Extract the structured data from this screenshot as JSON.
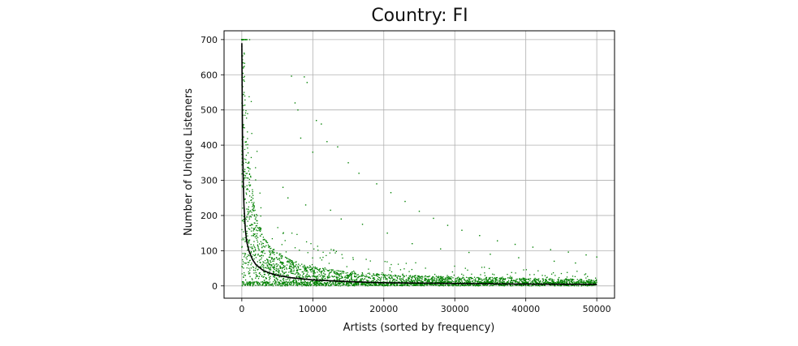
{
  "chart_data": {
    "type": "scatter",
    "title": "Country: FI",
    "xlabel": "Artists (sorted by frequency)",
    "ylabel": "Number of Unique Listeners",
    "xlim": [
      -2500,
      52500
    ],
    "ylim": [
      -35,
      725
    ],
    "xticks": [
      0,
      10000,
      20000,
      30000,
      40000,
      50000
    ],
    "yticks": [
      0,
      100,
      200,
      300,
      400,
      500,
      600,
      700
    ],
    "grid": true,
    "n_artists": 50000,
    "series": [
      {
        "kind": "points",
        "color": "#008000",
        "core_band": [
          [
            0,
            695
          ],
          [
            100,
            560
          ],
          [
            300,
            380
          ],
          [
            600,
            280
          ],
          [
            1000,
            200
          ],
          [
            1500,
            150
          ],
          [
            2000,
            115
          ],
          [
            3000,
            80
          ],
          [
            4000,
            62
          ],
          [
            5000,
            52
          ],
          [
            7000,
            40
          ],
          [
            10000,
            30
          ],
          [
            15000,
            22
          ],
          [
            20000,
            18
          ],
          [
            30000,
            14
          ],
          [
            40000,
            12
          ],
          [
            50000,
            10
          ]
        ],
        "outliers": [
          [
            7000,
            596
          ],
          [
            8800,
            594
          ],
          [
            9200,
            578
          ],
          [
            7500,
            520
          ],
          [
            7900,
            500
          ],
          [
            10500,
            470
          ],
          [
            11200,
            460
          ],
          [
            8300,
            420
          ],
          [
            12000,
            410
          ],
          [
            13500,
            395
          ],
          [
            10000,
            380
          ],
          [
            15000,
            350
          ],
          [
            16500,
            320
          ],
          [
            19000,
            290
          ],
          [
            21000,
            265
          ],
          [
            23000,
            240
          ],
          [
            25000,
            212
          ],
          [
            27000,
            192
          ],
          [
            29000,
            172
          ],
          [
            31000,
            158
          ],
          [
            33500,
            143
          ],
          [
            36000,
            128
          ],
          [
            38500,
            118
          ],
          [
            41000,
            110
          ],
          [
            43500,
            103
          ],
          [
            46000,
            96
          ],
          [
            48500,
            88
          ],
          [
            50000,
            82
          ],
          [
            5800,
            280
          ],
          [
            6500,
            250
          ],
          [
            9000,
            230
          ],
          [
            12500,
            215
          ],
          [
            14000,
            190
          ],
          [
            17000,
            175
          ],
          [
            20500,
            150
          ],
          [
            24000,
            120
          ],
          [
            28000,
            105
          ],
          [
            32000,
            95
          ],
          [
            35000,
            90
          ],
          [
            39000,
            80
          ],
          [
            44000,
            70
          ],
          [
            47000,
            65
          ]
        ]
      },
      {
        "kind": "line",
        "color": "#000000",
        "x": [
          1,
          50,
          100,
          200,
          300,
          500,
          700,
          1000,
          1500,
          2000,
          3000,
          4000,
          5000,
          7000,
          10000,
          15000,
          20000,
          30000,
          40000,
          50000
        ],
        "y": [
          690,
          560,
          430,
          300,
          230,
          160,
          125,
          100,
          75,
          60,
          44,
          36,
          30,
          23,
          17,
          12,
          9,
          7,
          5,
          4
        ]
      }
    ]
  }
}
